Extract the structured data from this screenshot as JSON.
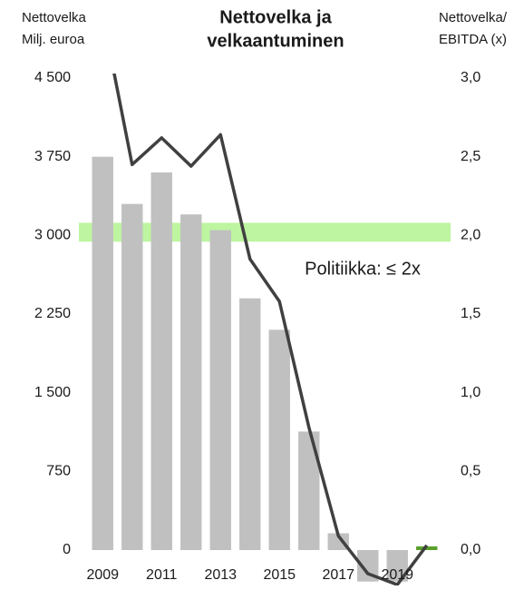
{
  "chart_data": {
    "type": "bar-line",
    "title": [
      "Nettovelka ja",
      "velkaantuminen"
    ],
    "y_label": [
      "Nettovelka",
      "Milj. euroa"
    ],
    "y2_label": [
      "Nettovelka/",
      "EBITDA (x)"
    ],
    "categories": [
      "2009",
      null,
      "2011",
      null,
      "2013",
      null,
      "2015",
      null,
      "2017",
      null,
      "2019",
      null
    ],
    "series": [
      {
        "type": "bar",
        "color": "#c0c0c0",
        "colors": [
          "#c0c0c0",
          "#c0c0c0",
          "#c0c0c0",
          "#c0c0c0",
          "#c0c0c0",
          "#c0c0c0",
          "#c0c0c0",
          "#c0c0c0",
          "#c0c0c0",
          "#c0c0c0",
          "#c0c0c0",
          "#5aa02c"
        ],
        "values": [
          3750,
          3300,
          3600,
          3200,
          3050,
          2400,
          2100,
          1130,
          160,
          -300,
          -300,
          35
        ]
      },
      {
        "type": "line",
        "axis": "y2",
        "color": "#404040",
        "values": [
          3.4,
          2.45,
          2.62,
          2.44,
          2.64,
          1.85,
          1.58,
          0.78,
          0.09,
          -0.15,
          -0.22,
          0.03
        ]
      }
    ],
    "policy_band": {
      "label": "Politiikka: ≤ 2x",
      "range": [
        1.96,
        2.08
      ],
      "color": "#bdf5a0"
    },
    "ylim": [
      0,
      4500
    ],
    "yticks": [
      {
        "value": 4500,
        "label": "4 500"
      },
      {
        "value": 3750,
        "label": "3 750"
      },
      {
        "value": 3000,
        "label": "3 000"
      },
      {
        "value": 2250,
        "label": "2 250"
      },
      {
        "value": 1500,
        "label": "1 500"
      },
      750,
      0
    ],
    "y2lim": [
      0,
      3
    ],
    "y2ticks": [
      {
        "value": 3,
        "label": "3,0"
      },
      {
        "value": 2.5,
        "label": "2,5"
      },
      {
        "value": 2,
        "label": "2,0"
      },
      {
        "value": 1.5,
        "label": "1,5"
      },
      {
        "value": 1,
        "label": "1,0"
      },
      {
        "value": 0.5,
        "label": "0,5"
      },
      {
        "value": 0,
        "label": "0,0"
      }
    ]
  }
}
